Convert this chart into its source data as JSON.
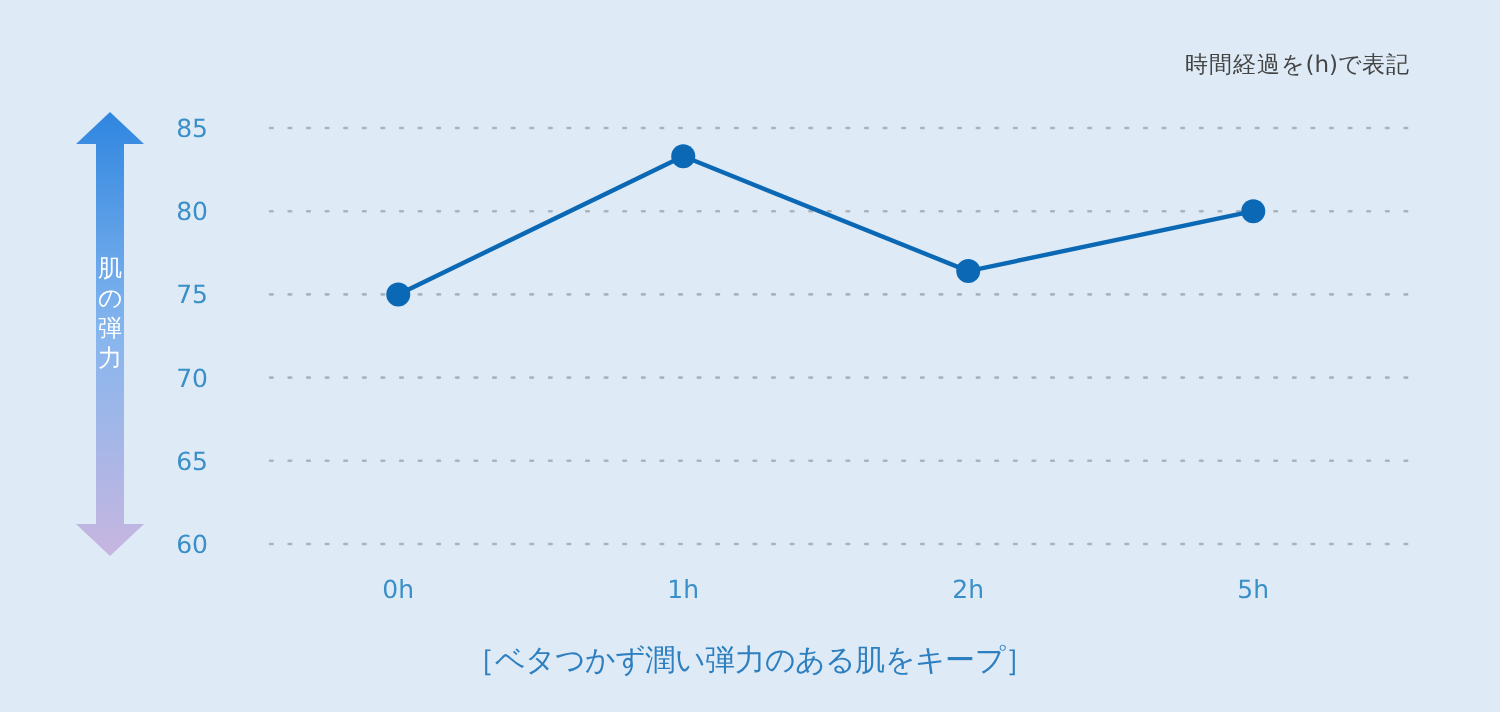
{
  "chart_data": {
    "type": "line",
    "categories": [
      "0h",
      "1h",
      "2h",
      "5h"
    ],
    "series": [
      {
        "color": "#0a68b4",
        "values": [
          75.0,
          83.3,
          76.4,
          80.0
        ]
      }
    ],
    "ylim": [
      60,
      85
    ],
    "yticks": [
      60,
      65,
      70,
      75,
      80,
      85
    ],
    "ylabel": "肌の弾力",
    "grid": "y",
    "marker": "circle",
    "line_style": "solid",
    "annotations": [
      "時間経過を(h)で表記",
      "［ベタつかず潤い弾力のある肌をキープ］"
    ]
  }
}
